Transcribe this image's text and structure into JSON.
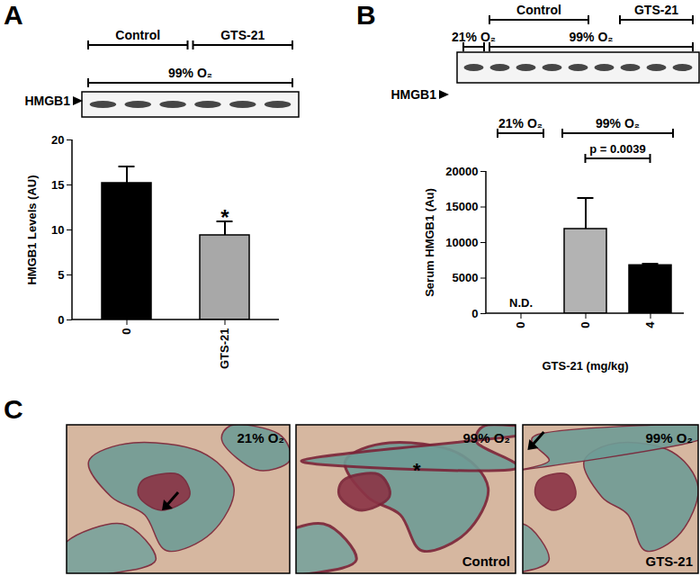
{
  "chart_data": [
    {
      "type": "bar",
      "panel": "A",
      "categories": [
        "0",
        "GTS-21"
      ],
      "values": [
        15.2,
        9.4
      ],
      "errors": [
        1.8,
        1.5
      ],
      "colors": [
        "#000000",
        "#a8a8a8"
      ],
      "ylabel": "HMGB1 Levels (AU)",
      "ylim": [
        0,
        20
      ],
      "yticks": [
        0,
        5,
        10,
        15,
        20
      ],
      "annotations": [
        {
          "index": 1,
          "text": "*"
        }
      ],
      "blot": {
        "label": "HMGB1",
        "lanes": 6,
        "brackets": [
          [
            {
              "text": "Control",
              "lanes": [
                0,
                2
              ]
            },
            {
              "text": "GTS-21",
              "lanes": [
                3,
                5
              ]
            }
          ],
          [
            {
              "text": "99% O₂",
              "lanes": [
                0,
                5
              ]
            }
          ]
        ]
      }
    },
    {
      "type": "bar",
      "panel": "B",
      "categories": [
        "0",
        "0",
        "4"
      ],
      "values": [
        null,
        11900,
        6800
      ],
      "errors": [
        null,
        4300,
        150
      ],
      "colors": [
        "#000000",
        "#b3b3b3",
        "#000000"
      ],
      "xlabel": "GTS-21 (mg/kg)",
      "ylabel": "Serum HMGB1 (Au)",
      "ylim": [
        0,
        20000
      ],
      "yticks": [
        0,
        5000,
        10000,
        15000,
        20000
      ],
      "annotations": [
        {
          "index": 0,
          "text": "N.D."
        }
      ],
      "groups": [
        {
          "text": "21% O₂",
          "from": 0,
          "to": 0
        },
        {
          "text": "99% O₂",
          "from": 1,
          "to": 2
        }
      ],
      "comparisons": [
        {
          "text": "p = 0.0039",
          "from": 1,
          "to": 2
        }
      ],
      "blot": {
        "label": "HMGB1",
        "lanes": 9,
        "brackets": [
          [
            {
              "text": "Control",
              "lanes": [
                1,
                4
              ]
            },
            {
              "text": "GTS-21",
              "lanes": [
                6,
                8
              ]
            }
          ],
          [
            {
              "text": "21% O₂",
              "lanes": [
                0,
                0
              ]
            },
            {
              "text": "99% O₂",
              "lanes": [
                1,
                8
              ]
            }
          ]
        ]
      }
    }
  ],
  "histology": {
    "panel": "C",
    "images": [
      {
        "top_label": "21% O₂",
        "arrow": true
      },
      {
        "top_label": "99% O₂",
        "bottom_label": "Control",
        "asterisk": "*"
      },
      {
        "top_label": "99% O₂",
        "bottom_label": "GTS-21",
        "arrow": true
      }
    ]
  }
}
